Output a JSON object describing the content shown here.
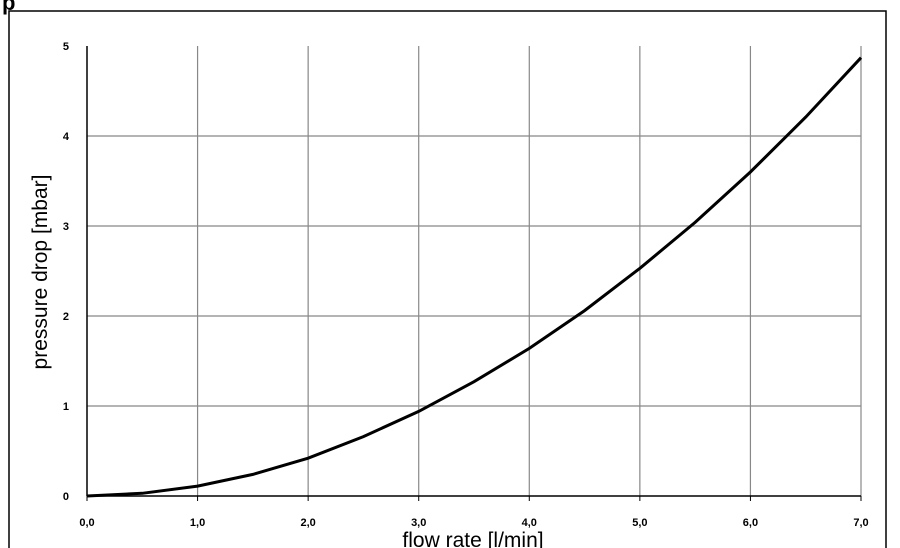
{
  "chart_data": {
    "type": "line",
    "title_fragment": "p",
    "xlabel": "flow rate [l/min]",
    "ylabel": "pressure drop [mbar]",
    "xlim": [
      0,
      7
    ],
    "ylim": [
      0,
      5
    ],
    "x_ticks": [
      "0,0",
      "1,0",
      "2,0",
      "3,0",
      "4,0",
      "5,0",
      "6,0",
      "7,0"
    ],
    "y_ticks": [
      "0",
      "1",
      "2",
      "3",
      "4",
      "5"
    ],
    "grid": true,
    "legend": false,
    "colors": {
      "line": "#000000",
      "grid": "#888888",
      "frame": "#000000"
    },
    "series": [
      {
        "x": [
          0,
          0.5,
          1.0,
          1.5,
          2.0,
          2.5,
          3.0,
          3.5,
          4.0,
          4.5,
          5.0,
          5.5,
          6.0,
          6.5,
          7.0
        ],
        "y": [
          0,
          0.03,
          0.11,
          0.24,
          0.42,
          0.66,
          0.94,
          1.27,
          1.64,
          2.06,
          2.53,
          3.04,
          3.6,
          4.21,
          4.87
        ]
      }
    ]
  }
}
